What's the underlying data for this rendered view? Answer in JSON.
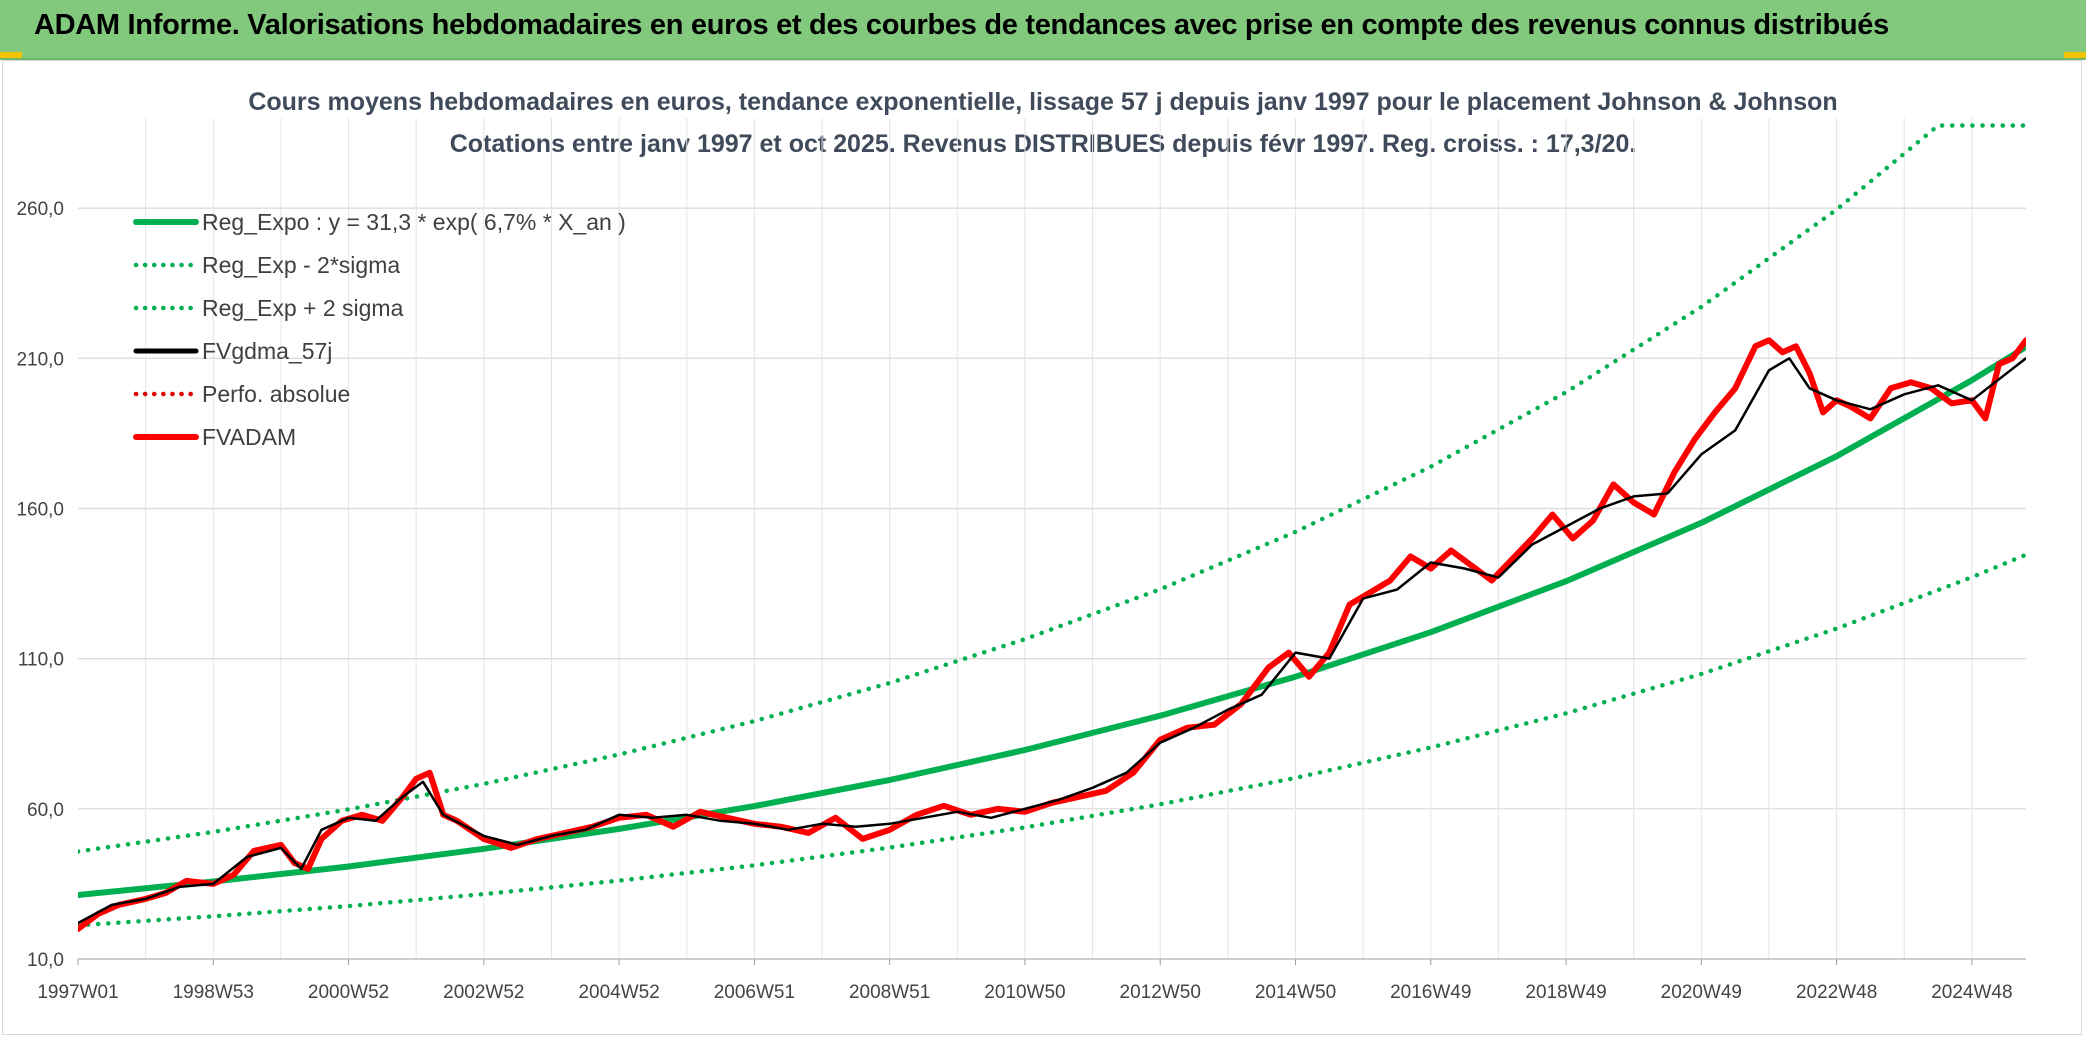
{
  "banner": {
    "title": "ADAM Informe. Valorisations hebdomadaires en euros et des courbes de tendances avec prise en compte des revenus connus distribués"
  },
  "chart_data": {
    "type": "line",
    "title": "Cours moyens hebdomadaires en euros, tendance exponentielle, lissage 57 j depuis janv 1997 pour le placement Johnson & Johnson",
    "subtitle": "Cotations entre janv 1997 et oct 2025. Revenus DISTRIBUES depuis févr 1997. Reg. croiss. : 17,3/20.",
    "xlabel": "",
    "ylabel": "",
    "x_range": [
      1997.0,
      2025.8
    ],
    "ylim": [
      10,
      290
    ],
    "y_ticks": [
      {
        "value": 10,
        "label": "10,0"
      },
      {
        "value": 60,
        "label": "60,0"
      },
      {
        "value": 110,
        "label": "110,0"
      },
      {
        "value": 160,
        "label": "160,0"
      },
      {
        "value": 210,
        "label": "210,0"
      },
      {
        "value": 260,
        "label": "260,0"
      }
    ],
    "x_ticks": [
      {
        "value": 1997.0,
        "label": "1997W01"
      },
      {
        "value": 1999.0,
        "label": "1998W53"
      },
      {
        "value": 2001.0,
        "label": "2000W52"
      },
      {
        "value": 2003.0,
        "label": "2002W52"
      },
      {
        "value": 2005.0,
        "label": "2004W52"
      },
      {
        "value": 2007.0,
        "label": "2006W51"
      },
      {
        "value": 2009.0,
        "label": "2008W51"
      },
      {
        "value": 2011.0,
        "label": "2010W50"
      },
      {
        "value": 2013.0,
        "label": "2012W50"
      },
      {
        "value": 2015.0,
        "label": "2014W50"
      },
      {
        "value": 2017.0,
        "label": "2016W49"
      },
      {
        "value": 2019.0,
        "label": "2018W49"
      },
      {
        "value": 2021.0,
        "label": "2020W49"
      },
      {
        "value": 2023.0,
        "label": "2022W48"
      },
      {
        "value": 2025.0,
        "label": "2024W48"
      }
    ],
    "grid": true,
    "legend_position": "top-left",
    "series": [
      {
        "name": "Reg_Expo : y = 31,3 * exp( 6,7% *  X_an )",
        "color": "#00b050",
        "style": "solid-thick",
        "x": [
          1997,
          1999,
          2001,
          2003,
          2005,
          2007,
          2009,
          2011,
          2013,
          2015,
          2017,
          2019,
          2021,
          2023,
          2025,
          2025.8
        ],
        "y": [
          31.3,
          35.8,
          40.8,
          46.7,
          53.3,
          60.9,
          69.6,
          79.6,
          91.0,
          104.0,
          118.8,
          135.8,
          155.2,
          177.4,
          202.7,
          213.8
        ]
      },
      {
        "name": "Reg_Exp - 2*sigma",
        "color": "#00b050",
        "style": "dotted",
        "x": [
          1997,
          1999,
          2001,
          2003,
          2005,
          2007,
          2009,
          2011,
          2013,
          2015,
          2017,
          2019,
          2021,
          2023,
          2025,
          2025.8
        ],
        "y": [
          21.2,
          24.2,
          27.6,
          31.6,
          36.1,
          41.2,
          47.1,
          53.8,
          61.5,
          70.3,
          80.4,
          91.8,
          104.9,
          120.0,
          137.1,
          144.6
        ]
      },
      {
        "name": "Reg_Exp + 2 sigma",
        "color": "#00b050",
        "style": "dotted",
        "x": [
          1997,
          1999,
          2001,
          2003,
          2005,
          2007,
          2009,
          2011,
          2013,
          2015,
          2017,
          2019,
          2021,
          2023,
          2024.5,
          2025.8
        ],
        "y": [
          45.8,
          52.3,
          59.8,
          68.3,
          78.1,
          89.2,
          101.9,
          116.5,
          133.1,
          152.2,
          173.9,
          198.7,
          227.1,
          259.5,
          287.5,
          287.5
        ]
      },
      {
        "name": "FVgdma_57j",
        "color": "#000000",
        "style": "solid",
        "x": [
          1997.0,
          1997.5,
          1998.0,
          1998.5,
          1999.0,
          1999.5,
          2000.0,
          2000.3,
          2000.6,
          2001.0,
          2001.4,
          2001.8,
          2002.1,
          2002.4,
          2003.0,
          2003.5,
          2004.0,
          2004.5,
          2005.0,
          2005.5,
          2006.0,
          2006.5,
          2007.0,
          2007.5,
          2008.0,
          2008.5,
          2009.0,
          2009.5,
          2010.0,
          2010.5,
          2011.0,
          2011.5,
          2012.0,
          2012.5,
          2013.0,
          2013.5,
          2014.0,
          2014.5,
          2015.0,
          2015.5,
          2016.0,
          2016.5,
          2017.0,
          2017.5,
          2018.0,
          2018.5,
          2019.0,
          2019.5,
          2020.0,
          2020.5,
          2021.0,
          2021.5,
          2022.0,
          2022.3,
          2022.6,
          2023.0,
          2023.5,
          2024.0,
          2024.5,
          2025.0,
          2025.4,
          2025.8
        ],
        "y": [
          22,
          28,
          30,
          34,
          35,
          44,
          47,
          40,
          53,
          57,
          56,
          64,
          69,
          58,
          51,
          48,
          51,
          53,
          58,
          57,
          58,
          56,
          55,
          53,
          55,
          54,
          55,
          57,
          59,
          57,
          60,
          63,
          67,
          72,
          82,
          87,
          93,
          98,
          112,
          110,
          130,
          133,
          142,
          140,
          137,
          148,
          154,
          160,
          164,
          165,
          178,
          186,
          206,
          210,
          200,
          196,
          193,
          198,
          201,
          196,
          203,
          210
        ]
      },
      {
        "name": "Perfo. absolue",
        "color": "#e00000",
        "style": "dotted",
        "x": [],
        "y": []
      },
      {
        "name": "FVADAM",
        "color": "#ff0000",
        "style": "solid-thick",
        "x": [
          1997.0,
          1997.3,
          1997.6,
          1998.0,
          1998.3,
          1998.6,
          1999.0,
          1999.3,
          1999.6,
          2000.0,
          2000.2,
          2000.4,
          2000.6,
          2000.9,
          2001.2,
          2001.5,
          2001.8,
          2002.0,
          2002.2,
          2002.4,
          2002.6,
          2003.0,
          2003.4,
          2003.8,
          2004.2,
          2004.6,
          2005.0,
          2005.4,
          2005.8,
          2006.2,
          2006.6,
          2007.0,
          2007.4,
          2007.8,
          2008.2,
          2008.6,
          2009.0,
          2009.4,
          2009.8,
          2010.2,
          2010.6,
          2011.0,
          2011.4,
          2011.8,
          2012.2,
          2012.6,
          2013.0,
          2013.4,
          2013.8,
          2014.2,
          2014.6,
          2014.9,
          2015.2,
          2015.5,
          2015.8,
          2016.1,
          2016.4,
          2016.7,
          2017.0,
          2017.3,
          2017.6,
          2017.9,
          2018.2,
          2018.5,
          2018.8,
          2019.1,
          2019.4,
          2019.7,
          2020.0,
          2020.3,
          2020.6,
          2020.9,
          2021.2,
          2021.5,
          2021.8,
          2022.0,
          2022.2,
          2022.4,
          2022.6,
          2022.8,
          2023.0,
          2023.2,
          2023.5,
          2023.8,
          2024.1,
          2024.4,
          2024.7,
          2025.0,
          2025.2,
          2025.4,
          2025.6,
          2025.8
        ],
        "y": [
          20,
          25,
          28,
          30,
          32,
          36,
          35,
          38,
          46,
          48,
          42,
          40,
          50,
          56,
          58,
          56,
          64,
          70,
          72,
          58,
          56,
          50,
          47,
          50,
          52,
          54,
          57,
          58,
          54,
          59,
          57,
          55,
          54,
          52,
          57,
          50,
          53,
          58,
          61,
          58,
          60,
          59,
          62,
          64,
          66,
          72,
          83,
          87,
          88,
          95,
          107,
          112,
          104,
          112,
          128,
          132,
          136,
          144,
          140,
          146,
          141,
          136,
          143,
          150,
          158,
          150,
          156,
          168,
          162,
          158,
          172,
          183,
          192,
          200,
          214,
          216,
          212,
          214,
          205,
          192,
          196,
          194,
          190,
          200,
          202,
          200,
          195,
          196,
          190,
          208,
          210,
          216
        ]
      }
    ]
  }
}
